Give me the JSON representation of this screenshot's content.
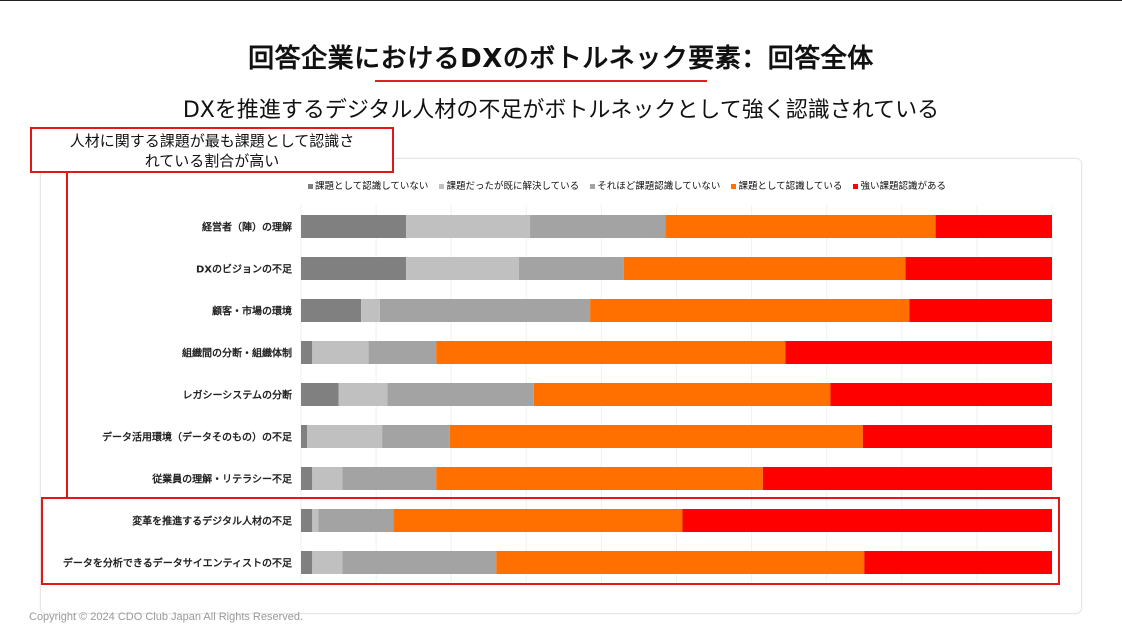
{
  "title": "回答企業におけるDXのボトルネック要素：回答全体",
  "subtitle": "DXを推進するデジタル人材の不足がボトルネックとして強く認識されている",
  "callout": {
    "line1": "人材に関する課題が最も課題として認識さ",
    "line2": "れている割合が高い"
  },
  "copyright": "Copyright © 2024 CDO Club Japan All Rights Reserved.",
  "colors": {
    "accent_red": "#e01818",
    "series": [
      "#808080",
      "#c0c0c0",
      "#a3a3a3",
      "#ff7000",
      "#ff0000"
    ]
  },
  "chart_data": {
    "type": "bar",
    "orientation": "horizontal",
    "stacked": true,
    "percent": true,
    "xlim": [
      0,
      100
    ],
    "categories": [
      "経営者（陣）の理解",
      "DXのビジョンの不足",
      "顧客・市場の環境",
      "組織間の分断・組織体制",
      "レガシーシステムの分断",
      "データ活用環境（データそのもの）の不足",
      "従業員の理解・リテラシー不足",
      "変革を推進するデジタル人材の不足",
      "データを分析できるデータサイエンティストの不足"
    ],
    "series": [
      {
        "name": "課題として認識していない",
        "values": [
          14,
          14,
          8,
          1.5,
          5,
          0.8,
          1.5,
          1.5,
          1.5
        ]
      },
      {
        "name": "課題だったが既に解決している",
        "values": [
          16.5,
          15,
          2.5,
          7.5,
          6.5,
          10,
          4,
          0.8,
          4
        ]
      },
      {
        "name": "それほど課題認識していない",
        "values": [
          18,
          14,
          28,
          9,
          19.5,
          9,
          12.5,
          10,
          20.5
        ]
      },
      {
        "name": "課題として認識している",
        "values": [
          36,
          37.5,
          42.5,
          46.5,
          39.5,
          55,
          43.5,
          38.5,
          49
        ]
      },
      {
        "name": "強い課題認識がある",
        "values": [
          15.5,
          19.5,
          19,
          35.5,
          29.5,
          25.2,
          38.5,
          49.2,
          25
        ]
      }
    ],
    "grid": "vertical-light",
    "legend": "top"
  }
}
